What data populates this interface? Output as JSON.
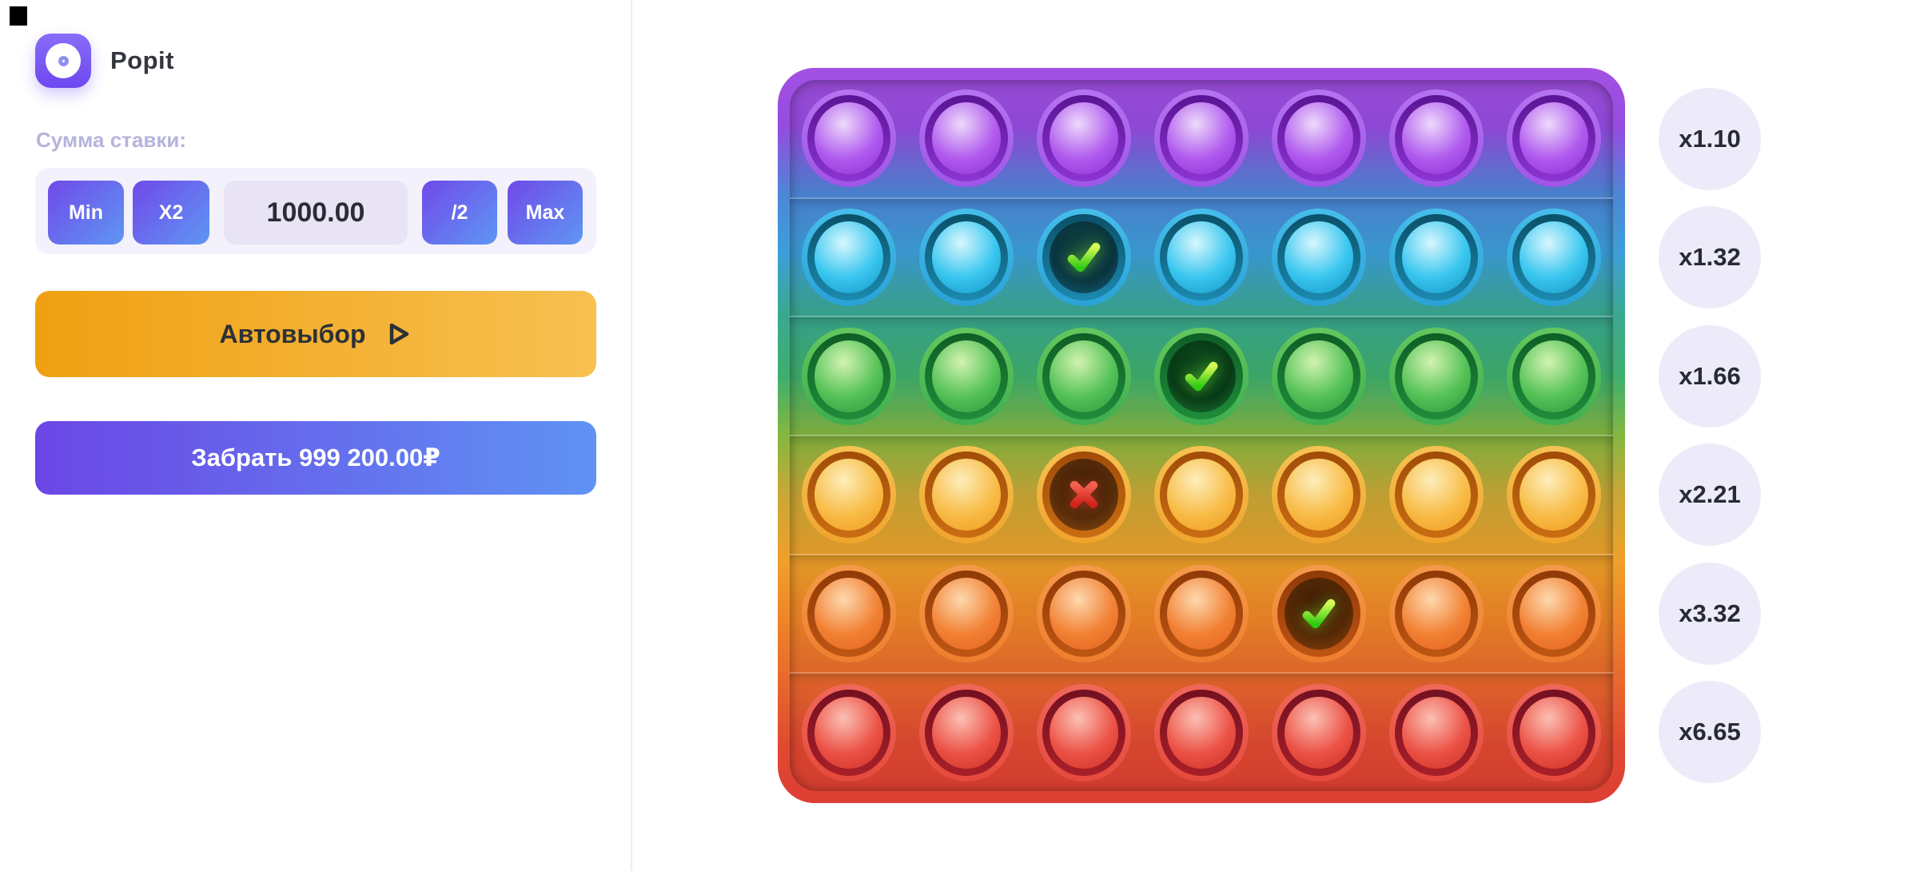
{
  "app": {
    "title": "Popit"
  },
  "bet": {
    "label": "Сумма ставки:",
    "amount": "1000.00",
    "buttons": {
      "min": "Min",
      "x2": "X2",
      "half": "/2",
      "max": "Max"
    }
  },
  "actions": {
    "autopick": "Автовыбор",
    "cashout": "Забрать 999 200.00₽"
  },
  "multipliers": [
    "x1.10",
    "x1.32",
    "x1.66",
    "x2.21",
    "x3.32",
    "x6.65"
  ],
  "board": {
    "rows": 6,
    "cols": 7,
    "row_colors": [
      "purple",
      "cyan",
      "green",
      "amber",
      "orange",
      "red"
    ],
    "popped": [
      {
        "row": 2,
        "col": 3,
        "state": "hit"
      },
      {
        "row": 3,
        "col": 4,
        "state": "hit"
      },
      {
        "row": 4,
        "col": 3,
        "state": "miss"
      },
      {
        "row": 5,
        "col": 5,
        "state": "hit"
      }
    ],
    "palette": {
      "purple": {
        "rim1": "#b474f0",
        "rim2": "#9f55e8",
        "ring1": "#5a1494",
        "ring2": "#8c34d2",
        "hl": "#eddafb",
        "mid": "#b05aee",
        "edge": "#8d2ed5",
        "cav1": "#2a0f4a",
        "cav2": "#220a40",
        "cav3": "#5c22a0"
      },
      "cyan": {
        "rim1": "#46bdea",
        "rim2": "#2aa2d6",
        "ring1": "#0b5069",
        "ring2": "#1b89ae",
        "hl": "#d8f7fe",
        "mid": "#38c6ef",
        "edge": "#1694c4",
        "cav1": "#12443c",
        "cav2": "#093440",
        "cav3": "#17647e"
      },
      "green": {
        "rim1": "#63c75e",
        "rim2": "#3fae4f",
        "ring1": "#0e5e26",
        "ring2": "#1f8c3a",
        "hl": "#d2f3b1",
        "mid": "#55c257",
        "edge": "#27973e",
        "cav1": "#0d4d1e",
        "cav2": "#083a16",
        "cav3": "#1f7c33"
      },
      "amber": {
        "rim1": "#f5c253",
        "rim2": "#f0a42e",
        "ring1": "#a04c08",
        "ring2": "#c96d12",
        "hl": "#fdeebb",
        "mid": "#f8bc47",
        "edge": "#ef9a1e",
        "cav1": "#3f1e05",
        "cav2": "#562b09",
        "cav3": "#8c4a12"
      },
      "orange": {
        "rim1": "#f49a4a",
        "rim2": "#ee7e2e",
        "ring1": "#8f3a06",
        "ring2": "#bf5513",
        "hl": "#fdd9ae",
        "mid": "#f28134",
        "edge": "#e2611d",
        "cav1": "#3c1c04",
        "cav2": "#542806",
        "cav3": "#92430c"
      },
      "red": {
        "rim1": "#f0685a",
        "rim2": "#e54a3c",
        "ring1": "#731021",
        "ring2": "#a81f28",
        "hl": "#fcc0b4",
        "mid": "#ec5246",
        "edge": "#c92f24",
        "cav1": "#45070d",
        "cav2": "#5c0d15",
        "cav3": "#9c1b22"
      }
    }
  },
  "colors": {
    "panel_button_gradient_start": "#7049e9",
    "panel_button_gradient_end": "#5e97f3",
    "auto_gradient_start": "#f0a012",
    "auto_gradient_end": "#f7c050",
    "cashout_gradient_start": "#6b46e5",
    "cashout_gradient_end": "#5f93f4",
    "mark_hit_green": "#52d61c",
    "mark_miss_red": "#e8352c",
    "multiplier_badge_bg": "#edebf9",
    "bet_box_bg": "#f3f1fb",
    "bet_label_color": "#b6b4dc"
  }
}
